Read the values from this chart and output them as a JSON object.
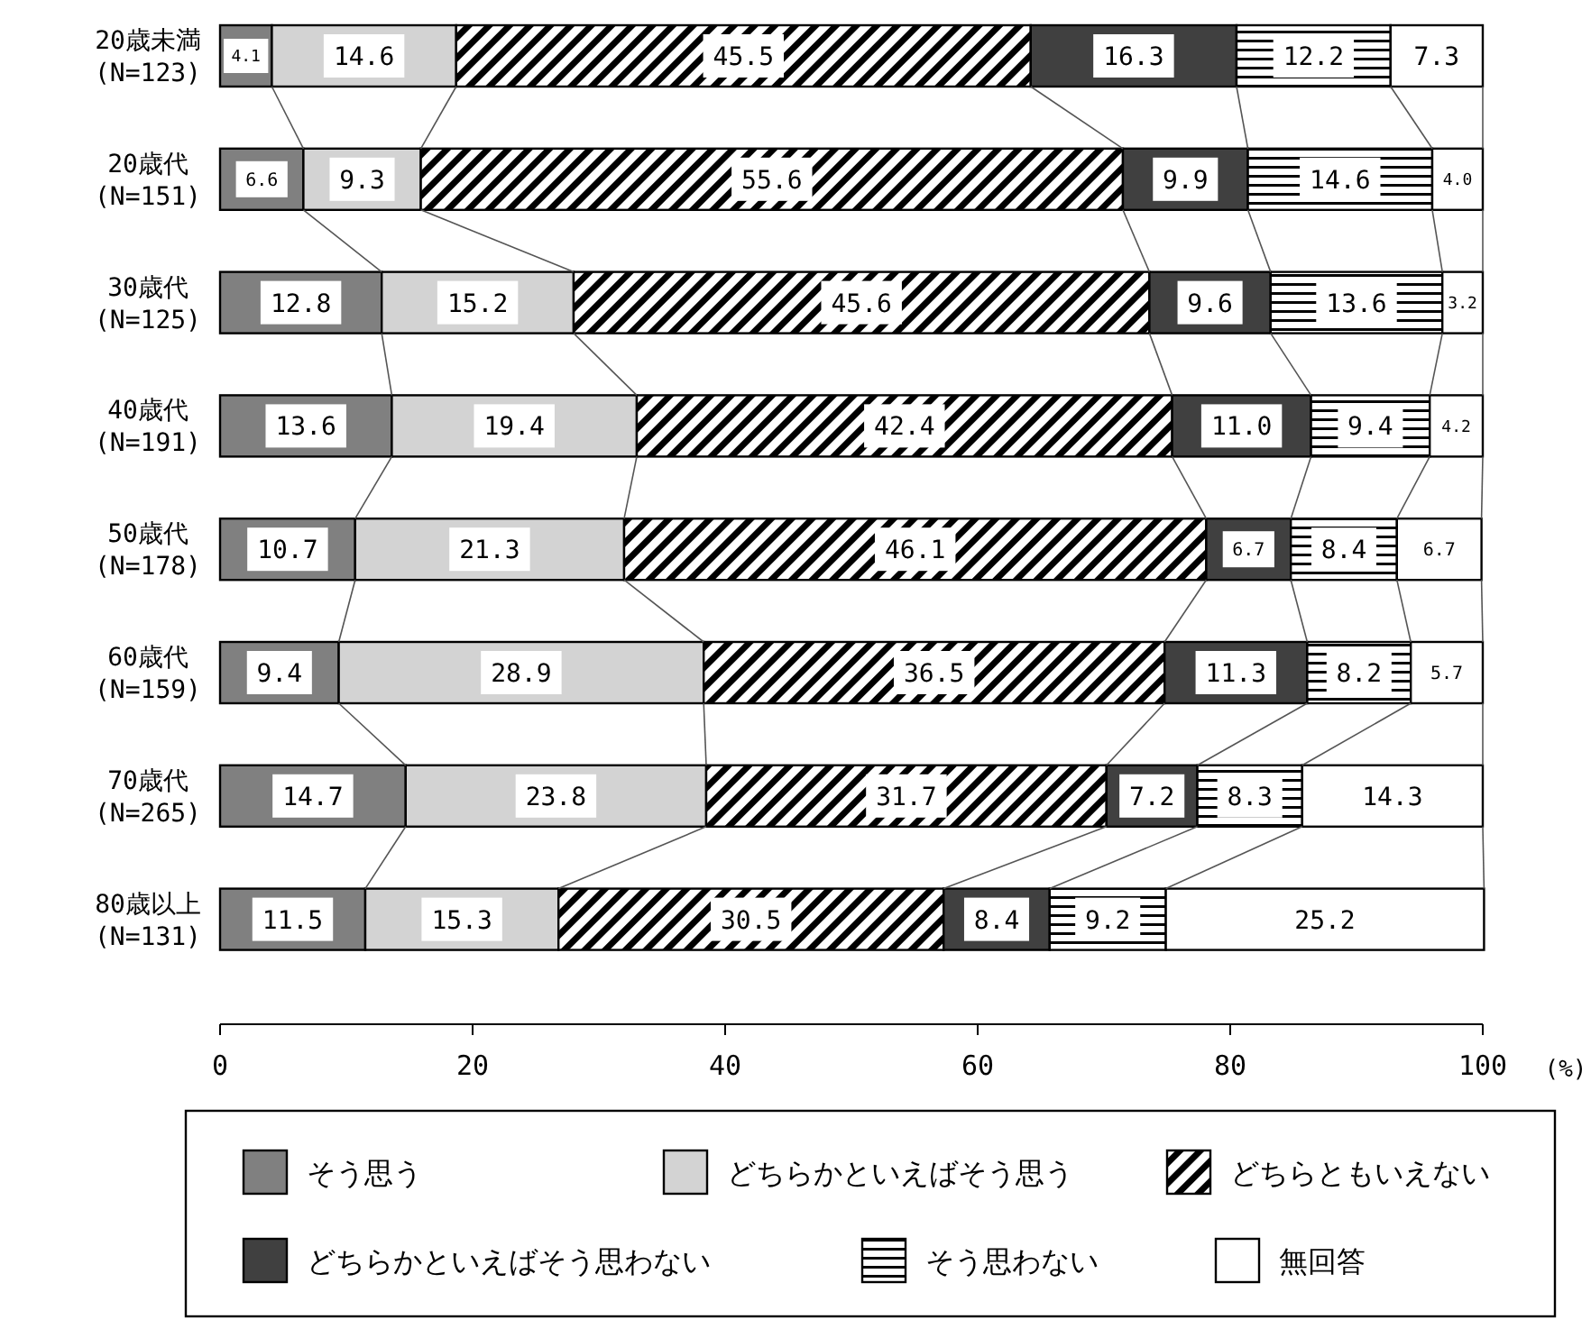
{
  "chart_data": {
    "type": "bar",
    "orientation": "horizontal",
    "stacked": true,
    "xlabel": "(%)",
    "legend": "bottom",
    "grid": false,
    "categories": [
      "20歳未満\n(N=123)",
      "20歳代\n(N=151)",
      "30歳代\n(N=125)",
      "40歳代\n(N=191)",
      "50歳代\n(N=178)",
      "60歳代\n(N=159)",
      "70歳代\n(N=265)",
      "80歳以上\n(N=131)"
    ],
    "xlim": [
      0,
      100
    ],
    "xticks": [
      0,
      20,
      40,
      60,
      80,
      100
    ],
    "series": [
      {
        "name": "そう思う",
        "color": "#808080",
        "values": [
          4.1,
          6.6,
          12.8,
          13.6,
          10.7,
          9.4,
          14.7,
          11.5
        ],
        "value_labels": [
          "4.1",
          "6.6",
          "12.8",
          "13.6",
          "10.7",
          "9.4",
          "14.7",
          "11.5"
        ]
      },
      {
        "name": "どちらかといえばそう思う",
        "color": "#d3d3d3",
        "values": [
          14.6,
          9.3,
          15.2,
          19.4,
          21.3,
          28.9,
          23.8,
          15.3
        ],
        "value_labels": [
          "14.6",
          "9.3",
          "15.2",
          "19.4",
          "21.3",
          "28.9",
          "23.8",
          "15.3"
        ]
      },
      {
        "name": "どちらともいえない",
        "color": "#000000",
        "values": [
          45.5,
          55.6,
          45.6,
          42.4,
          46.1,
          36.5,
          31.7,
          30.5
        ],
        "value_labels": [
          "45.5",
          "55.6",
          "45.6",
          "42.4",
          "46.1",
          "36.5",
          "31.7",
          "30.5"
        ]
      },
      {
        "name": "どちらかといえばそう思わない",
        "color": "#404040",
        "values": [
          16.3,
          9.9,
          9.6,
          11.0,
          6.7,
          11.3,
          7.2,
          8.4
        ],
        "value_labels": [
          "16.3",
          "9.9",
          "9.6",
          "11.0",
          "6.7",
          "11.3",
          "7.2",
          "8.4"
        ]
      },
      {
        "name": "そう思わない",
        "color": "#000000",
        "values": [
          12.2,
          14.6,
          13.6,
          9.4,
          8.4,
          8.2,
          8.3,
          9.2
        ],
        "value_labels": [
          "12.2",
          "14.6",
          "13.6",
          "9.4",
          "8.4",
          "8.2",
          "8.3",
          "9.2"
        ]
      },
      {
        "name": "無回答",
        "color": "#ffffff",
        "values": [
          7.3,
          4.0,
          3.2,
          4.2,
          6.7,
          5.7,
          14.3,
          25.2
        ],
        "value_labels": [
          "7.3",
          "4.0",
          "3.2",
          "4.2",
          "6.7",
          "5.7",
          "14.3",
          "25.2"
        ]
      }
    ]
  }
}
